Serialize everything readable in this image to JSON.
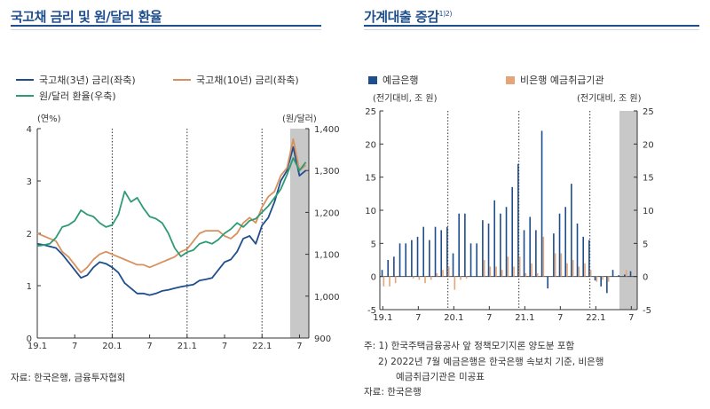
{
  "left_panel": {
    "title": "국고채 금리 및 원/달러 환율",
    "unit_left": "(연%)",
    "unit_right": "(원/달러)",
    "source": "자료: 한국은행, 금융투자협회"
  },
  "right_panel": {
    "title": "가계대출 증감",
    "title_sup": "1)2)",
    "unit_left": "(전기대비, 조 원)",
    "unit_right": "(전기대비, 조 원)",
    "notes": [
      "주: 1) 한국주택금융공사 앞 정책모기지론 양도분 포함",
      "2) 2022년 7월 예금은행은 한국은행 속보치 기준, 비은행",
      "예금취급기관은 미공표",
      "자료: 한국은행"
    ]
  },
  "colors": {
    "title": "#1f4e8c",
    "bond3": "#1f4e8c",
    "bond10": "#d8915e",
    "fx": "#2e9a77",
    "bank": "#1f4e8c",
    "nonbank": "#e3a57a",
    "shade": "#c8c8c8"
  },
  "chart_data": [
    {
      "type": "line",
      "title": "국고채 금리 및 원/달러 환율",
      "xlabel": "",
      "ylabel": "(연%)",
      "ylabel_right": "(원/달러)",
      "x_tick_labels": [
        "19.1",
        "7",
        "20.1",
        "7",
        "21.1",
        "7",
        "22.1",
        "7"
      ],
      "x_months_from_2019_01": [
        0,
        6,
        12,
        18,
        24,
        30,
        36,
        42
      ],
      "ylim": [
        0,
        4
      ],
      "yticks": [
        0,
        1,
        2,
        3,
        4
      ],
      "ylim_right": [
        900,
        1400
      ],
      "yticks_right": [
        900,
        "1,000",
        "1,100",
        "1,200",
        "1,300",
        "1,400"
      ],
      "vertical_dotted_at_months": [
        12,
        24,
        36
      ],
      "shaded_months": [
        40.5,
        43.5
      ],
      "series": [
        {
          "name": "국고채(3년) 금리(좌축)",
          "axis": "left",
          "x": [
            0,
            1,
            2,
            3,
            4,
            5,
            6,
            7,
            8,
            9,
            10,
            11,
            12,
            13,
            14,
            15,
            16,
            17,
            18,
            19,
            20,
            21,
            22,
            23,
            24,
            25,
            26,
            27,
            28,
            29,
            30,
            31,
            32,
            33,
            34,
            35,
            36,
            37,
            38,
            39,
            40,
            41,
            42,
            43
          ],
          "values": [
            1.8,
            1.78,
            1.75,
            1.72,
            1.6,
            1.45,
            1.3,
            1.15,
            1.2,
            1.35,
            1.45,
            1.42,
            1.35,
            1.25,
            1.05,
            0.95,
            0.85,
            0.85,
            0.82,
            0.85,
            0.9,
            0.92,
            0.95,
            0.98,
            1.0,
            1.02,
            1.1,
            1.12,
            1.15,
            1.3,
            1.45,
            1.5,
            1.65,
            1.9,
            1.95,
            1.8,
            2.15,
            2.3,
            2.6,
            3.0,
            3.2,
            3.65,
            3.1,
            3.2
          ]
        },
        {
          "name": "국고채(10년) 금리(좌축)",
          "axis": "left",
          "x": [
            0,
            1,
            2,
            3,
            4,
            5,
            6,
            7,
            8,
            9,
            10,
            11,
            12,
            13,
            14,
            15,
            16,
            17,
            18,
            19,
            20,
            21,
            22,
            23,
            24,
            25,
            26,
            27,
            28,
            29,
            30,
            31,
            32,
            33,
            34,
            35,
            36,
            37,
            38,
            39,
            40,
            41,
            42,
            43
          ],
          "values": [
            2.0,
            1.95,
            1.9,
            1.85,
            1.65,
            1.55,
            1.4,
            1.25,
            1.35,
            1.5,
            1.6,
            1.65,
            1.6,
            1.55,
            1.5,
            1.45,
            1.4,
            1.4,
            1.35,
            1.4,
            1.45,
            1.5,
            1.55,
            1.65,
            1.7,
            1.85,
            2.0,
            2.05,
            2.05,
            2.05,
            1.95,
            1.9,
            2.0,
            2.2,
            2.3,
            2.2,
            2.5,
            2.7,
            2.8,
            3.1,
            3.25,
            3.8,
            3.2,
            3.3
          ]
        },
        {
          "name": "원/달러 환율(우축)",
          "axis": "right",
          "x": [
            0,
            1,
            2,
            3,
            4,
            5,
            6,
            7,
            8,
            9,
            10,
            11,
            12,
            13,
            14,
            15,
            16,
            17,
            18,
            19,
            20,
            21,
            22,
            23,
            24,
            25,
            26,
            27,
            28,
            29,
            30,
            31,
            32,
            33,
            34,
            35,
            36,
            37,
            38,
            39,
            40,
            41,
            42,
            43
          ],
          "values": [
            1120,
            1122,
            1125,
            1140,
            1165,
            1170,
            1180,
            1205,
            1195,
            1190,
            1175,
            1165,
            1170,
            1195,
            1250,
            1225,
            1235,
            1210,
            1190,
            1185,
            1175,
            1150,
            1115,
            1095,
            1105,
            1110,
            1125,
            1130,
            1125,
            1135,
            1150,
            1160,
            1175,
            1165,
            1180,
            1185,
            1200,
            1215,
            1235,
            1255,
            1290,
            1330,
            1300,
            1320
          ]
        }
      ]
    },
    {
      "type": "bar",
      "title": "가계대출 증감",
      "xlabel": "",
      "ylabel": "(전기대비, 조 원)",
      "x_tick_labels": [
        "19.1",
        "7",
        "20.1",
        "7",
        "21.1",
        "7",
        "22.1",
        "7"
      ],
      "x_months_from_2019_01": [
        0,
        6,
        12,
        18,
        24,
        30,
        36,
        42
      ],
      "ylim": [
        -5,
        25
      ],
      "yticks": [
        -5,
        0,
        5,
        10,
        15,
        20,
        25
      ],
      "vertical_dotted_at_months": [
        12,
        24,
        36
      ],
      "shaded_months": [
        40.5,
        43.5
      ],
      "categories": [
        "19.1",
        "19.2",
        "19.3",
        "19.4",
        "19.5",
        "19.6",
        "19.7",
        "19.8",
        "19.9",
        "19.10",
        "19.11",
        "19.12",
        "20.1",
        "20.2",
        "20.3",
        "20.4",
        "20.5",
        "20.6",
        "20.7",
        "20.8",
        "20.9",
        "20.10",
        "20.11",
        "20.12",
        "21.1",
        "21.2",
        "21.3",
        "21.4",
        "21.5",
        "21.6",
        "21.7",
        "21.8",
        "21.9",
        "21.10",
        "21.11",
        "21.12",
        "22.1",
        "22.2",
        "22.3",
        "22.4",
        "22.5",
        "22.6",
        "22.7"
      ],
      "series": [
        {
          "name": "예금은행",
          "values": [
            1.0,
            2.5,
            3.0,
            5.0,
            5.0,
            5.5,
            6.0,
            7.5,
            5.5,
            7.5,
            7.0,
            7.5,
            3.5,
            9.5,
            9.5,
            5.0,
            5.0,
            8.5,
            8.0,
            11.5,
            9.5,
            10.5,
            13.5,
            17.0,
            7.0,
            9.0,
            7.0,
            22.0,
            -1.8,
            6.5,
            9.5,
            10.5,
            14.0,
            8.0,
            6.0,
            5.5,
            -0.6,
            -1.5,
            -2.5,
            1.0,
            0.2,
            0.3,
            0.8
          ]
        },
        {
          "name": "비은행 예금취급기관",
          "values": [
            -1.5,
            -1.5,
            -1.0,
            0.0,
            0.0,
            -0.3,
            -0.5,
            -1.0,
            -0.5,
            0.5,
            1.0,
            1.5,
            -2.0,
            -0.5,
            -0.3,
            0.0,
            0.0,
            2.5,
            1.5,
            1.5,
            1.0,
            3.0,
            1.5,
            3.0,
            0.5,
            2.0,
            0.5,
            6.0,
            0.0,
            3.5,
            3.5,
            2.0,
            2.5,
            1.5,
            2.0,
            1.0,
            -0.8,
            -0.5,
            -0.8,
            0.0,
            0.0,
            1.0,
            0.0
          ]
        }
      ]
    }
  ]
}
